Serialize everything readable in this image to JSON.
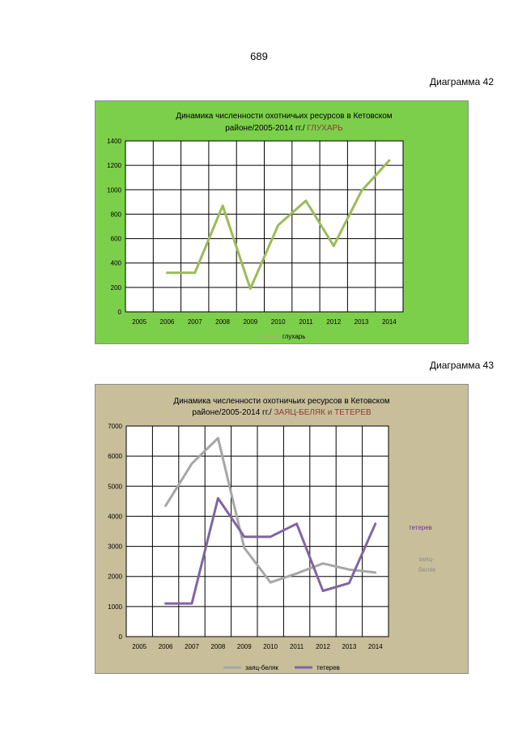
{
  "page_number": "689",
  "diagrams": [
    {
      "label": "Диаграмма 42"
    },
    {
      "label": "Диаграмма 43"
    }
  ],
  "chart_data": [
    {
      "type": "line",
      "title_line1": "Динамика численности охотничьих ресурсов в Кетовском",
      "title_line2": "районе/2005-2014 гг./",
      "title_highlight": "ГЛУХАРЬ",
      "title_highlight_color": "#8b3a3a",
      "background_color": "#7ccf4a",
      "plot_background": "#ffffff",
      "grid": true,
      "legend_position": "bottom",
      "categories": [
        "2005",
        "2006",
        "2007",
        "2008",
        "2009",
        "2010",
        "2011",
        "2012",
        "2013",
        "2014"
      ],
      "ylim": [
        0,
        1400
      ],
      "yticks": [
        "0",
        "200",
        "400",
        "600",
        "800",
        "1000",
        "1200",
        "1400"
      ],
      "series": [
        {
          "name": "глухарь",
          "color": "#9bbb59",
          "values": [
            null,
            320,
            320,
            870,
            190,
            710,
            910,
            540,
            990,
            1240
          ]
        }
      ]
    },
    {
      "type": "line",
      "title_line1": "Динамика численности охотничьих ресурсов в Кетовском",
      "title_line2": "районе/2005-2014 гг./",
      "title_highlight": "ЗАЯЦ-БЕЛЯК и ТЕТЕРЕВ",
      "title_highlight_color": "#8b3a3a",
      "background_color": "#c8bf9a",
      "plot_background": "#ffffff",
      "grid": true,
      "legend_position": "bottom",
      "categories": [
        "2005",
        "2006",
        "2007",
        "2008",
        "2009",
        "2010",
        "2011",
        "2012",
        "2013",
        "2014"
      ],
      "ylim": [
        0,
        7000
      ],
      "yticks": [
        "0",
        "1000",
        "2000",
        "3000",
        "4000",
        "5000",
        "6000",
        "7000"
      ],
      "series": [
        {
          "name": "заяц-беляк",
          "color": "#a6a6a6",
          "values": [
            null,
            4350,
            5750,
            6600,
            2950,
            1800,
            2100,
            2430,
            2230,
            2130
          ]
        },
        {
          "name": "тетерев",
          "color": "#8064a2",
          "values": [
            null,
            1100,
            1100,
            4600,
            3320,
            3320,
            3750,
            1520,
            1780,
            3750
          ]
        }
      ],
      "side_labels": [
        {
          "text": "тетерев",
          "color": "#7030a0"
        },
        {
          "text": "заяц-",
          "color": "#8c8c8c"
        },
        {
          "text": "беляк",
          "color": "#8c8c8c"
        }
      ]
    }
  ]
}
